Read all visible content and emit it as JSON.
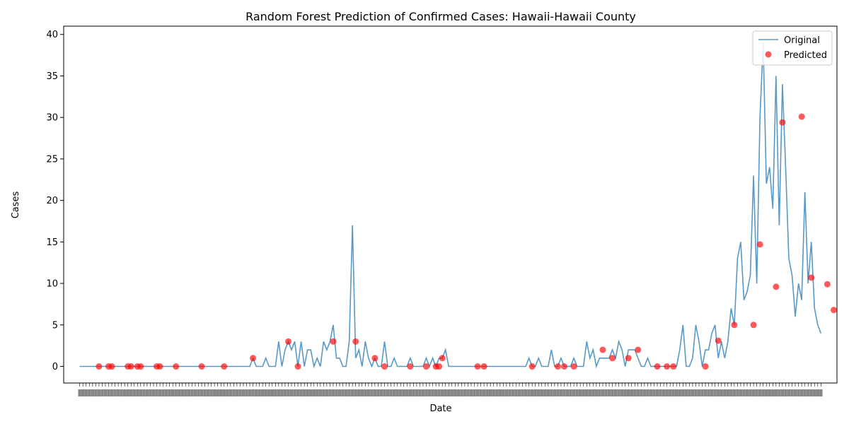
{
  "chart_data": {
    "type": "line",
    "title": "Random Forest Prediction of Confirmed Cases: Hawaii-Hawaii County",
    "xlabel": "Date",
    "ylabel": "Cases",
    "ylim": [
      -2,
      41
    ],
    "yticks": [
      0,
      5,
      10,
      15,
      20,
      25,
      30,
      35,
      40
    ],
    "x_axis_note": "overlapping daily date tick labels (illegible)",
    "legend": {
      "placement": "top-right",
      "entries": [
        "Original",
        "Predicted"
      ]
    },
    "grid": false,
    "colors": {
      "original": "#1f77b4",
      "predicted": "#ff0000"
    },
    "series": [
      {
        "name": "Original",
        "kind": "line",
        "values": [
          0,
          0,
          0,
          0,
          0,
          0,
          0,
          0,
          0,
          0,
          0,
          0,
          0,
          0,
          0,
          0,
          0,
          0,
          0,
          0,
          0,
          0,
          0,
          0,
          0,
          0,
          0,
          0,
          0,
          0,
          0,
          0,
          0,
          0,
          0,
          0,
          0,
          0,
          0,
          0,
          0,
          0,
          0,
          0,
          0,
          0,
          0,
          0,
          0,
          0,
          0,
          0,
          0,
          0,
          1,
          0,
          0,
          0,
          1,
          0,
          0,
          0,
          3,
          0,
          2,
          3,
          2,
          3,
          0,
          3,
          0,
          2,
          2,
          0,
          1,
          0,
          3,
          2,
          3,
          5,
          1,
          1,
          0,
          0,
          3,
          17,
          1,
          2,
          0,
          3,
          1,
          0,
          1,
          0,
          0,
          3,
          0,
          0,
          1,
          0,
          0,
          0,
          0,
          1,
          0,
          0,
          0,
          0,
          1,
          0,
          1,
          0,
          1,
          1,
          2,
          0,
          0,
          0,
          0,
          0,
          0,
          0,
          0,
          0,
          0,
          0,
          0,
          0,
          0,
          0,
          0,
          0,
          0,
          0,
          0,
          0,
          0,
          0,
          0,
          0,
          1,
          0,
          0,
          1,
          0,
          0,
          0,
          2,
          0,
          0,
          1,
          0,
          0,
          0,
          1,
          0,
          0,
          0,
          3,
          1,
          2,
          0,
          1,
          1,
          1,
          1,
          2,
          1,
          3,
          2,
          0,
          2,
          2,
          2,
          1,
          0,
          0,
          1,
          0,
          0,
          0,
          0,
          0,
          0,
          0,
          0,
          0,
          2,
          5,
          0,
          0,
          1,
          5,
          3,
          0,
          2,
          2,
          4,
          5,
          1,
          3,
          1,
          3,
          7,
          5,
          13,
          15,
          8,
          9,
          11,
          23,
          10,
          30,
          39,
          22,
          24,
          19,
          35,
          17,
          34,
          24,
          13,
          11,
          6,
          10,
          8,
          21,
          10,
          15,
          7,
          5,
          4
        ]
      },
      {
        "name": "Predicted",
        "kind": "scatter",
        "points": [
          [
            6,
            0
          ],
          [
            9,
            0
          ],
          [
            10,
            0
          ],
          [
            15,
            0
          ],
          [
            16,
            0
          ],
          [
            18,
            0
          ],
          [
            19,
            0
          ],
          [
            24,
            0
          ],
          [
            25,
            0
          ],
          [
            30,
            0
          ],
          [
            38,
            0
          ],
          [
            45,
            0
          ],
          [
            54,
            1
          ],
          [
            65,
            3
          ],
          [
            68,
            0
          ],
          [
            79,
            3
          ],
          [
            86,
            3
          ],
          [
            92,
            1
          ],
          [
            95,
            0
          ],
          [
            103,
            0
          ],
          [
            108,
            0
          ],
          [
            111,
            0
          ],
          [
            112,
            0
          ],
          [
            113,
            1
          ],
          [
            124,
            0
          ],
          [
            126,
            0
          ],
          [
            141,
            0
          ],
          [
            149,
            0
          ],
          [
            151,
            0
          ],
          [
            154,
            0
          ],
          [
            163,
            2
          ],
          [
            166,
            1
          ],
          [
            171,
            1
          ],
          [
            174,
            2
          ],
          [
            180,
            0
          ],
          [
            183,
            0
          ],
          [
            185,
            0
          ],
          [
            195,
            0
          ],
          [
            199,
            3.1
          ],
          [
            204,
            5
          ],
          [
            210,
            5
          ],
          [
            212,
            14.7
          ],
          [
            217,
            9.6
          ],
          [
            219,
            29.4
          ],
          [
            225,
            30.1
          ],
          [
            228,
            10.7
          ],
          [
            233,
            9.9
          ],
          [
            235,
            6.8
          ]
        ]
      }
    ]
  }
}
